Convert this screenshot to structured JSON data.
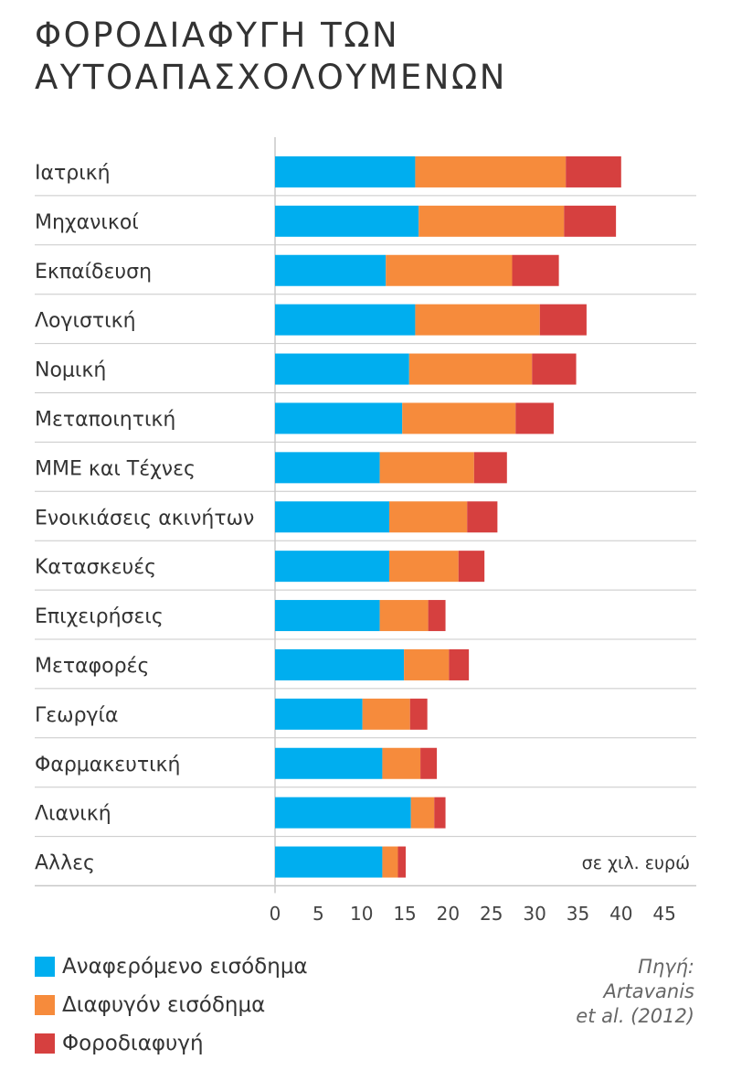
{
  "chart_data": {
    "type": "bar",
    "orientation": "horizontal",
    "stacked": true,
    "title_lines": [
      "ΦΟΡΟΔΙΑΦΥΓΗ ΤΩΝ",
      "ΑΥΤΟΑΠΑΣΧΟΛΟΥΜΕΝΩΝ"
    ],
    "categories": [
      "Ιατρική",
      "Μηχανικοί",
      "Εκπαίδευση",
      "Λογιστική",
      "Νομική",
      "Μεταποιητική",
      "ΜΜΕ και Τέχνες",
      "Ενοικιάσεις ακινήτων",
      "Κατασκευές",
      "Επιχειρήσεις",
      "Μεταφορές",
      "Γεωργία",
      "Φαρμακευτική",
      "Λιανική",
      "Αλλες"
    ],
    "series": [
      {
        "name": "Αναφερόμενο εισόδημα",
        "color": "#00AEEF",
        "values": [
          16.2,
          16.6,
          12.8,
          16.2,
          15.5,
          14.7,
          12.1,
          13.2,
          13.2,
          12.1,
          14.9,
          10.1,
          12.4,
          15.7,
          12.4
        ]
      },
      {
        "name": "Διαφυγόν εισόδημα",
        "color": "#F68B3C",
        "values": [
          17.4,
          16.8,
          14.6,
          14.4,
          14.2,
          13.1,
          10.9,
          9.0,
          8.0,
          5.6,
          5.2,
          5.5,
          4.4,
          2.7,
          1.8
        ]
      },
      {
        "name": "Φοροδιαφυγή",
        "color": "#D6403F",
        "values": [
          6.4,
          6.0,
          5.4,
          5.4,
          5.1,
          4.4,
          3.8,
          3.5,
          3.0,
          2.0,
          2.3,
          2.0,
          1.9,
          1.3,
          0.9
        ]
      }
    ],
    "xlim": [
      0,
      45
    ],
    "x_ticks": [
      "0",
      "5",
      "10",
      "15",
      "20",
      "25",
      "30",
      "35",
      "40",
      "45"
    ],
    "x_tick_step": 5,
    "unit_note": "σε χιλ. ευρώ",
    "source_lines": [
      "Πηγή:",
      "Artavanis",
      "et al. (2012)"
    ]
  }
}
